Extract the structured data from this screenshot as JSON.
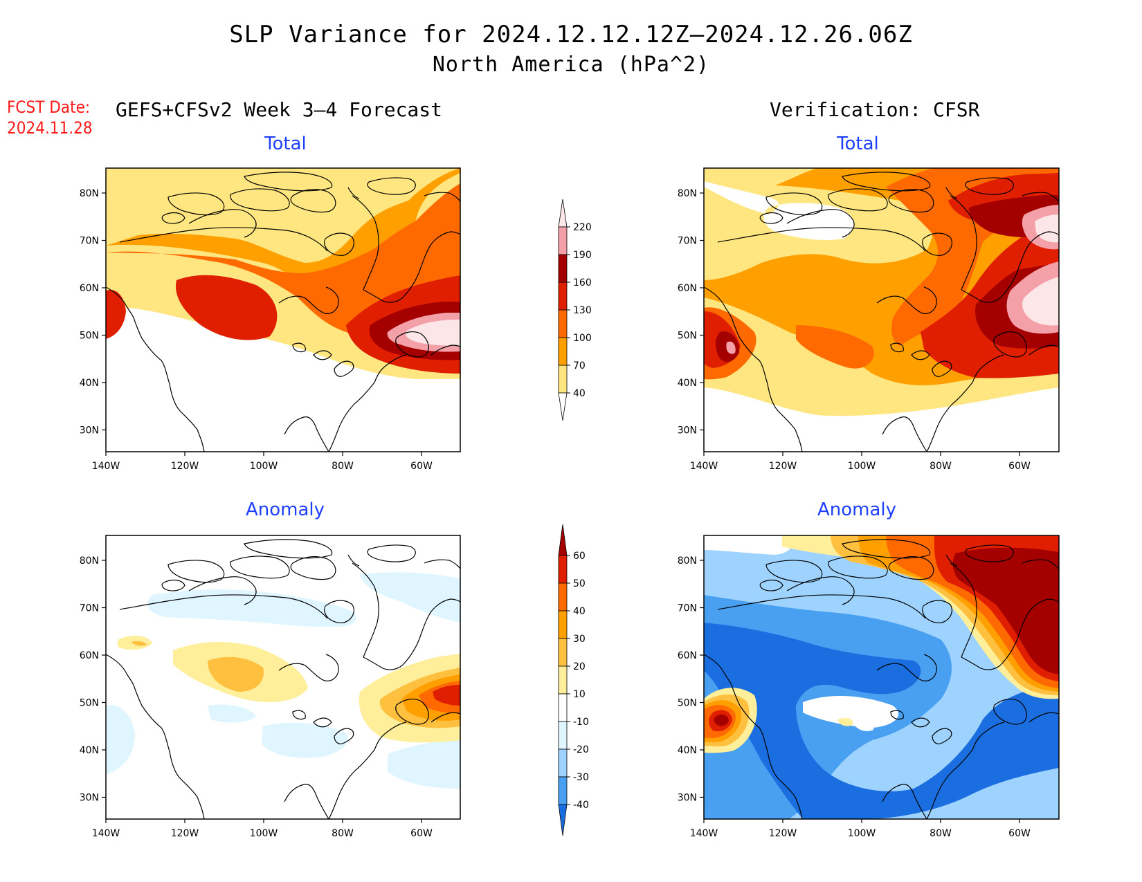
{
  "header": {
    "title": "SLP Variance for 2024.12.12.12Z–2024.12.26.06Z",
    "subtitle": "North America (hPa^2)",
    "fcst_label": "FCST Date:",
    "fcst_date": "2024.11.28",
    "left_column_title": "GEFS+CFSv2 Week 3–4 Forecast",
    "right_column_title": "Verification: CFSR"
  },
  "panels": {
    "forecast_total": {
      "title": "Total"
    },
    "verification_total": {
      "title": "Total"
    },
    "forecast_anomaly": {
      "title": "Anomaly"
    },
    "verification_anomaly": {
      "title": "Anomaly"
    }
  },
  "axes": {
    "lat_labels": [
      "80N",
      "70N",
      "60N",
      "50N",
      "40N",
      "30N"
    ],
    "lon_labels": [
      "140W",
      "120W",
      "100W",
      "80W",
      "60W"
    ]
  },
  "colorbars": {
    "total": {
      "levels": [
        "40",
        "70",
        "100",
        "130",
        "160",
        "190",
        "220"
      ],
      "colors": [
        "#ffe680",
        "#ffa000",
        "#ff6a00",
        "#e01e00",
        "#a50000",
        "#f4a0a8",
        "#fde6e8"
      ]
    },
    "anomaly": {
      "levels": [
        "60",
        "50",
        "40",
        "30",
        "20",
        "10",
        "-10",
        "-20",
        "-30",
        "-40"
      ],
      "colors": [
        "#a50000",
        "#e01e00",
        "#ff6a00",
        "#ffa000",
        "#ffc040",
        "#ffef9a",
        "#ffffff",
        "#dff5ff",
        "#9fd3ff",
        "#4aa0f0",
        "#1a6ee0"
      ]
    }
  },
  "colors": {
    "title_blue": "#1f3fff",
    "fcst_red": "#ff1a1a"
  }
}
